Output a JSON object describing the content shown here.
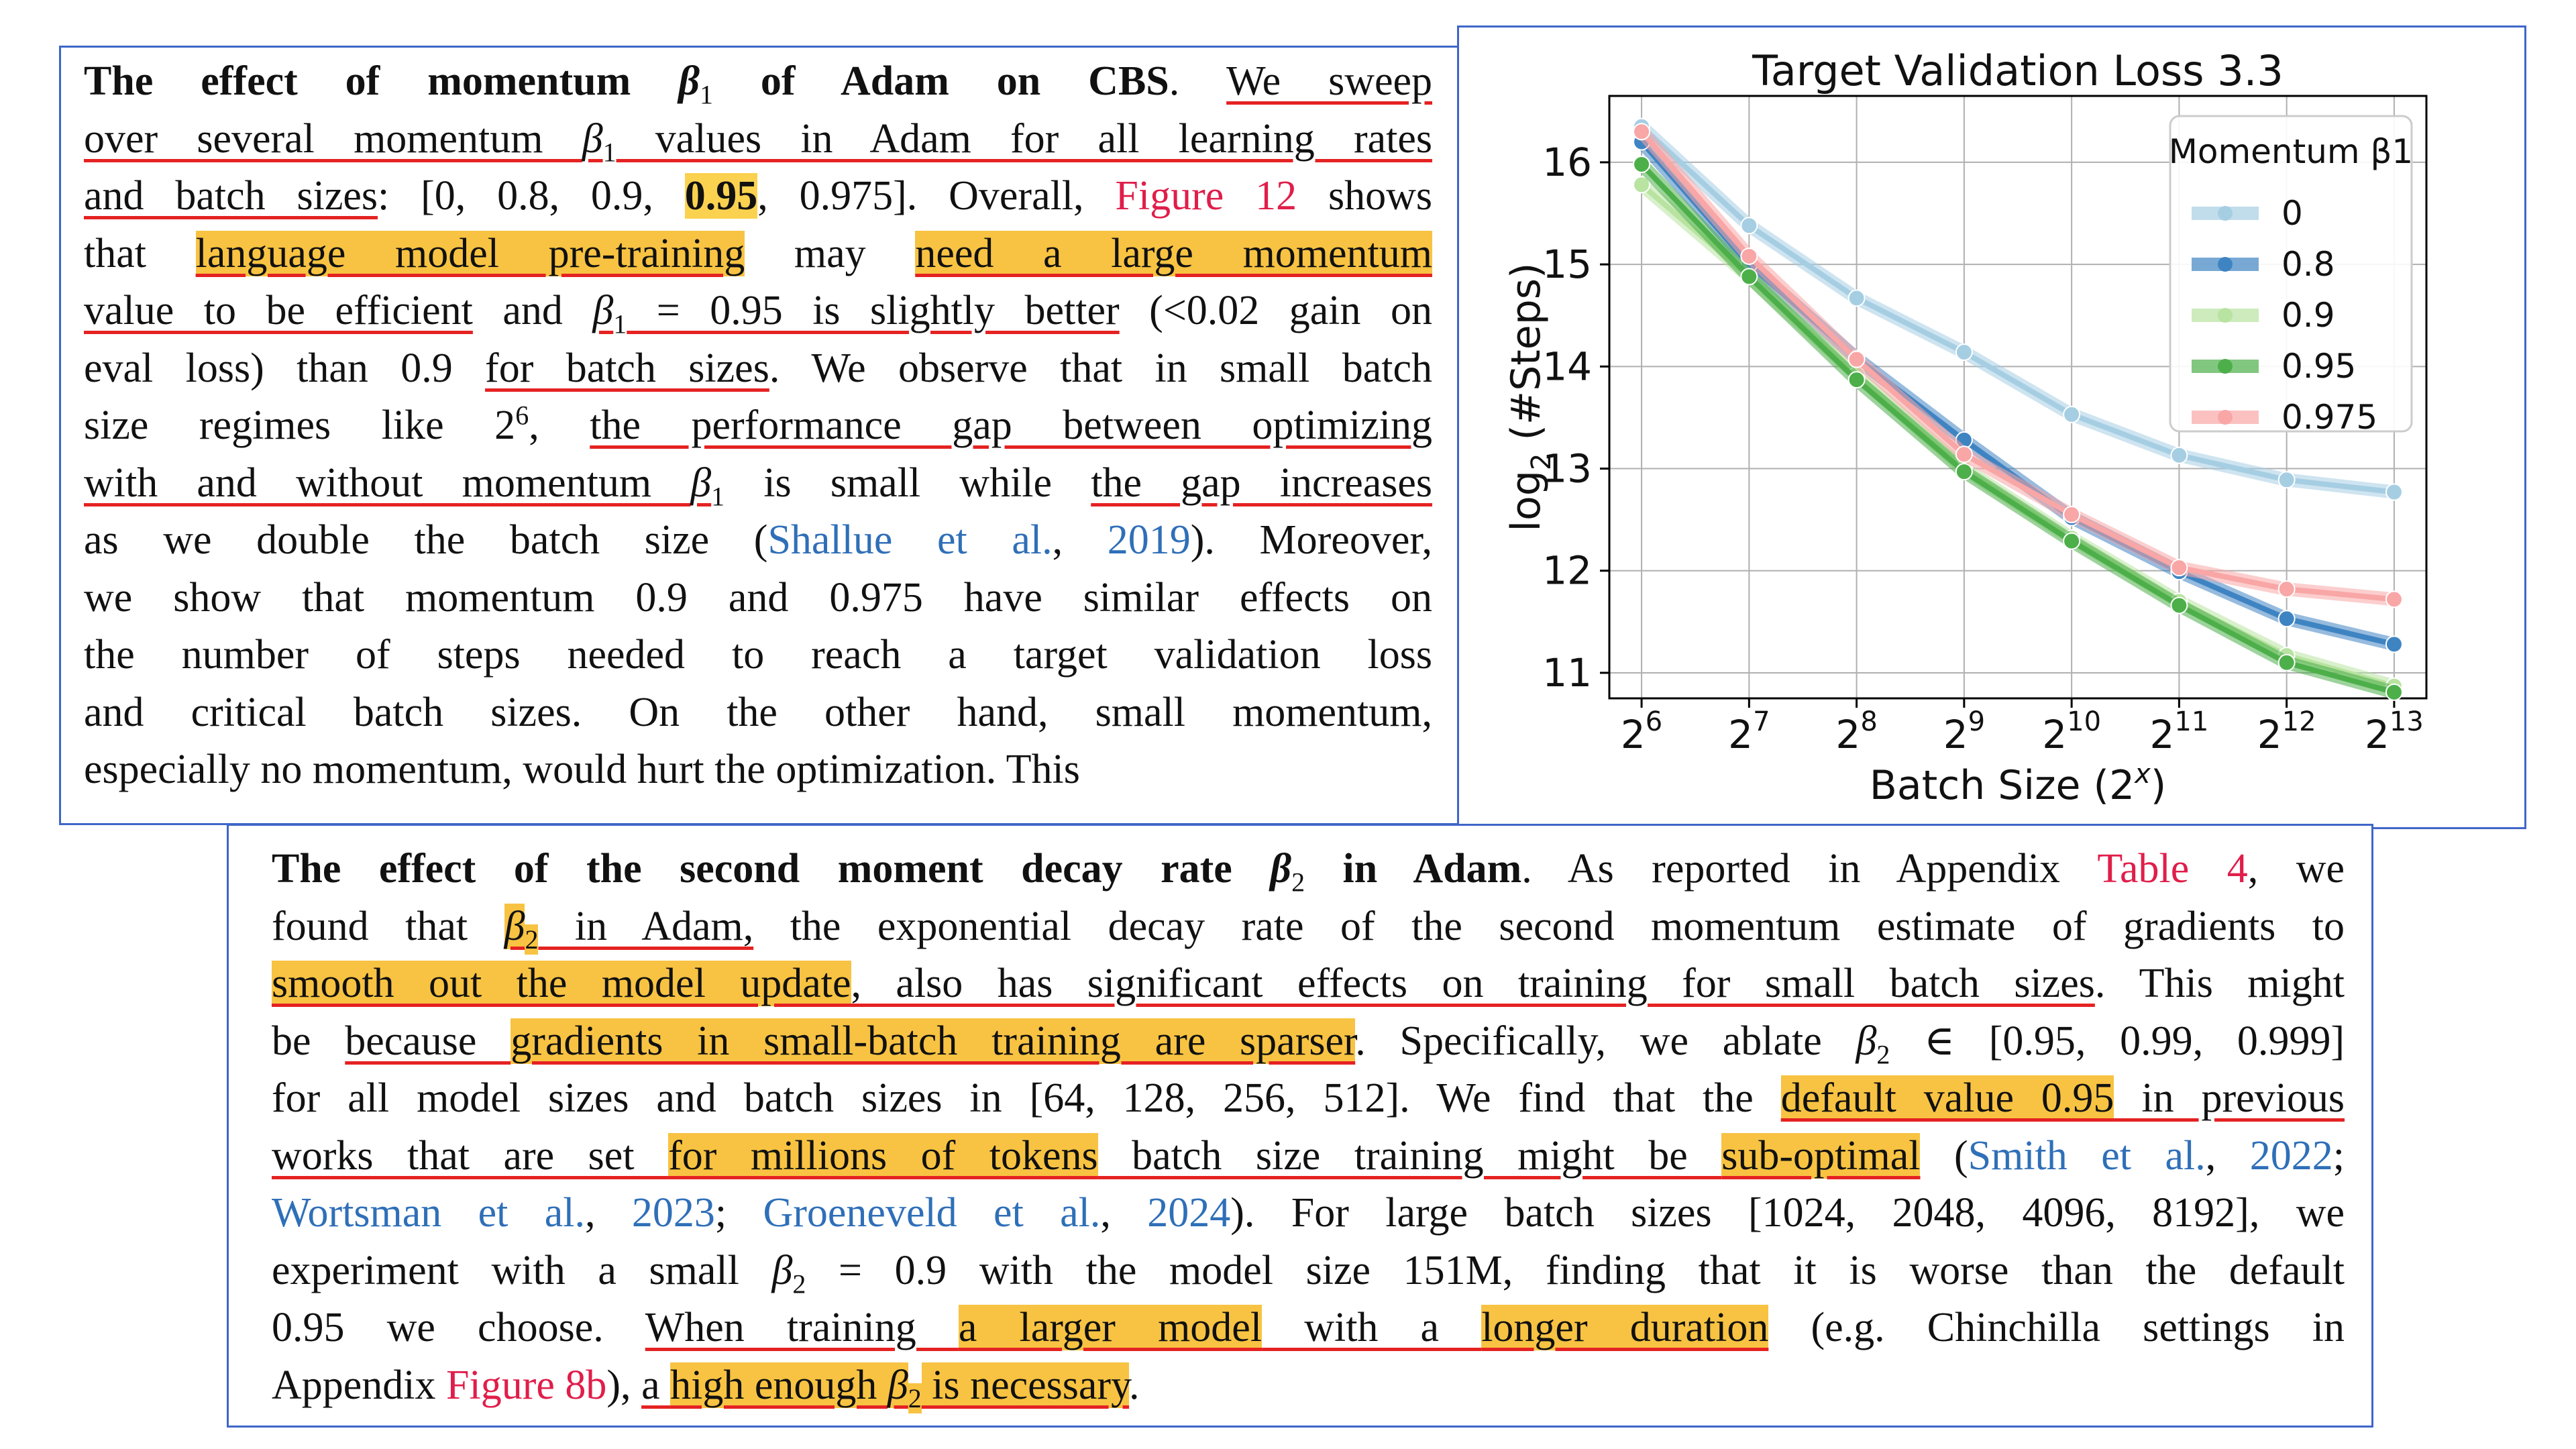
{
  "left": {
    "lines": [
      [
        {
          "t": "The effect of momentum ",
          "c": "bold"
        },
        {
          "t": "β",
          "c": "bold it"
        },
        {
          "t": "1",
          "c": "sub"
        },
        {
          "t": " of Adam on CBS",
          "c": "bold"
        },
        {
          "t": ". "
        },
        {
          "t": "We sweep",
          "c": "ul"
        }
      ],
      [
        {
          "t": "over several momentum ",
          "c": "ul"
        },
        {
          "t": "β",
          "c": "ul it"
        },
        {
          "t": "1",
          "c": "sub"
        },
        {
          "t": " values in Adam for all learning rates",
          "c": "ul"
        }
      ],
      [
        {
          "t": "and batch sizes",
          "c": "ul"
        },
        {
          "t": ": [0, 0.8, 0.9, "
        },
        {
          "t": "0.95",
          "c": "bold hl2"
        },
        {
          "t": ", 0.975]. Overall, "
        },
        {
          "t": "Figure 12",
          "c": "red"
        },
        {
          "t": " shows"
        }
      ],
      [
        {
          "t": "that "
        },
        {
          "t": "language model pre-training",
          "c": "ul hl"
        },
        {
          "t": " may "
        },
        {
          "t": "need a large momentum",
          "c": "ul hl"
        }
      ],
      [
        {
          "t": "value to be efficient",
          "c": "ul"
        },
        {
          "t": " and "
        },
        {
          "t": "β",
          "c": "ul it"
        },
        {
          "t": "1",
          "c": "sub"
        },
        {
          "t": " = 0.95 is slightly better",
          "c": "ul"
        },
        {
          "t": " (<0.02 gain on"
        }
      ],
      [
        {
          "t": "eval loss) than 0.9 "
        },
        {
          "t": "for batch sizes",
          "c": "ul"
        },
        {
          "t": ". We observe that in small batch"
        }
      ],
      [
        {
          "t": "size regimes like 2"
        },
        {
          "t": "6",
          "c": "sup"
        },
        {
          "t": ", "
        },
        {
          "t": "the performance gap between optimizing",
          "c": "ul"
        }
      ],
      [
        {
          "t": "with and without momentum ",
          "c": "ul"
        },
        {
          "t": "β",
          "c": "ul it"
        },
        {
          "t": "1",
          "c": "sub"
        },
        {
          "t": " is small while "
        },
        {
          "t": "the gap increases",
          "c": "ul"
        }
      ],
      [
        {
          "t": "as we double the batch size ("
        },
        {
          "t": "Shallue et al.",
          "c": "blue"
        },
        {
          "t": ", "
        },
        {
          "t": "2019",
          "c": "blue"
        },
        {
          "t": "). Moreover,"
        }
      ],
      [
        {
          "t": "we show that momentum 0.9 and 0.975 have similar effects on"
        }
      ],
      [
        {
          "t": "the number of steps needed to reach a target validation loss"
        }
      ],
      [
        {
          "t": "and critical batch sizes. On the other hand, small momentum,"
        }
      ],
      [
        {
          "t": "especially no momentum, would hurt the optimization. This"
        }
      ]
    ]
  },
  "bottom": {
    "lines": [
      [
        {
          "t": "The effect of the second moment decay rate ",
          "c": "bold"
        },
        {
          "t": "β",
          "c": "bold it"
        },
        {
          "t": "2",
          "c": "sub"
        },
        {
          "t": " in Adam",
          "c": "bold"
        },
        {
          "t": ". As reported in Appendix "
        },
        {
          "t": "Table 4",
          "c": "red"
        },
        {
          "t": ", we"
        }
      ],
      [
        {
          "t": "found that "
        },
        {
          "t": "β",
          "c": "ul hl it"
        },
        {
          "t": "2",
          "c": "sub hl"
        },
        {
          "t": " in Adam,",
          "c": "ul"
        },
        {
          "t": " the exponential decay rate of the second momentum estimate of gradients to"
        }
      ],
      [
        {
          "t": "smooth out the model update",
          "c": "ul hl"
        },
        {
          "t": ", also has significant effects on training for small batch sizes",
          "c": "ul"
        },
        {
          "t": ". This might"
        }
      ],
      [
        {
          "t": "be "
        },
        {
          "t": "because ",
          "c": "ul"
        },
        {
          "t": "gradients in small-batch training are sparser",
          "c": "ul hl"
        },
        {
          "t": ". Specifically, we ablate "
        },
        {
          "t": "β",
          "c": "it"
        },
        {
          "t": "2",
          "c": "sub"
        },
        {
          "t": " ∈ [0.95, 0.99, 0.999]"
        }
      ],
      [
        {
          "t": "for all model sizes and batch sizes in [64, 128, 256, 512]. We find that the "
        },
        {
          "t": "default value 0.95",
          "c": "ul hl"
        },
        {
          "t": " in previous",
          "c": "ul"
        }
      ],
      [
        {
          "t": "works that are set ",
          "c": "ul"
        },
        {
          "t": "for millions of tokens",
          "c": "ul hl"
        },
        {
          "t": " batch size training might be ",
          "c": "ul"
        },
        {
          "t": "sub-optimal",
          "c": "ul hl"
        },
        {
          "t": " ("
        },
        {
          "t": "Smith et al.",
          "c": "blue"
        },
        {
          "t": ", "
        },
        {
          "t": "2022",
          "c": "blue"
        },
        {
          "t": ";"
        }
      ],
      [
        {
          "t": "Wortsman et al.",
          "c": "blue"
        },
        {
          "t": ", "
        },
        {
          "t": "2023",
          "c": "blue"
        },
        {
          "t": "; "
        },
        {
          "t": "Groeneveld et al.",
          "c": "blue"
        },
        {
          "t": ", "
        },
        {
          "t": "2024",
          "c": "blue"
        },
        {
          "t": "). For large batch sizes [1024, 2048, 4096, 8192], we"
        }
      ],
      [
        {
          "t": "experiment with a small "
        },
        {
          "t": "β",
          "c": "it"
        },
        {
          "t": "2",
          "c": "sub"
        },
        {
          "t": " = 0.9 with the model size 151M, finding that it is worse than the default"
        }
      ],
      [
        {
          "t": "0.95 we choose. "
        },
        {
          "t": "When training ",
          "c": "ul"
        },
        {
          "t": "a larger model",
          "c": "ul hl"
        },
        {
          "t": " with a ",
          "c": "ul"
        },
        {
          "t": "longer duration",
          "c": "ul hl"
        },
        {
          "t": " (e.g. Chinchilla settings in"
        }
      ],
      [
        {
          "t": "Appendix "
        },
        {
          "t": "Figure 8b",
          "c": "red"
        },
        {
          "t": "), "
        },
        {
          "t": "a ",
          "c": "ul"
        },
        {
          "t": "high enough ",
          "c": "ul hl"
        },
        {
          "t": "β",
          "c": "ul hl it"
        },
        {
          "t": "2",
          "c": "sub hl"
        },
        {
          "t": " is necessary",
          "c": "ul hl"
        },
        {
          "t": "."
        }
      ]
    ]
  },
  "chart_data": {
    "type": "line",
    "title": "Target Validation Loss 3.3",
    "xlabel": "Batch Size (2^x)",
    "ylabel": "log2 (#Steps)",
    "x": [
      6,
      7,
      8,
      9,
      10,
      11,
      12,
      13
    ],
    "x_tick_labels": [
      "6",
      "7",
      "8",
      "9",
      "10",
      "11",
      "12",
      "13"
    ],
    "y_ticks": [
      11,
      12,
      13,
      14,
      15,
      16
    ],
    "xlim": [
      5.7,
      13.3
    ],
    "ylim": [
      10.75,
      16.65
    ],
    "grid": true,
    "legend_title": "Momentum β1",
    "legend_placement": "top-right",
    "series": [
      {
        "name": "0",
        "color": "#a6cee3",
        "values": [
          16.35,
          15.38,
          14.67,
          14.14,
          13.53,
          13.13,
          12.89,
          12.77
        ]
      },
      {
        "name": "0.8",
        "color": "#3f84c2",
        "values": [
          16.2,
          15.0,
          14.08,
          13.28,
          12.52,
          11.99,
          11.53,
          11.28
        ]
      },
      {
        "name": "0.9",
        "color": "#b8e3a0",
        "values": [
          15.78,
          14.88,
          13.92,
          13.0,
          12.32,
          11.7,
          11.17,
          10.87
        ]
      },
      {
        "name": "0.95",
        "color": "#4daf4a",
        "values": [
          15.98,
          14.88,
          13.87,
          12.97,
          12.29,
          11.66,
          11.1,
          10.81
        ]
      },
      {
        "name": "0.975",
        "color": "#f9a6a6",
        "values": [
          16.3,
          15.08,
          14.07,
          13.14,
          12.55,
          12.03,
          11.82,
          11.72
        ]
      }
    ]
  }
}
